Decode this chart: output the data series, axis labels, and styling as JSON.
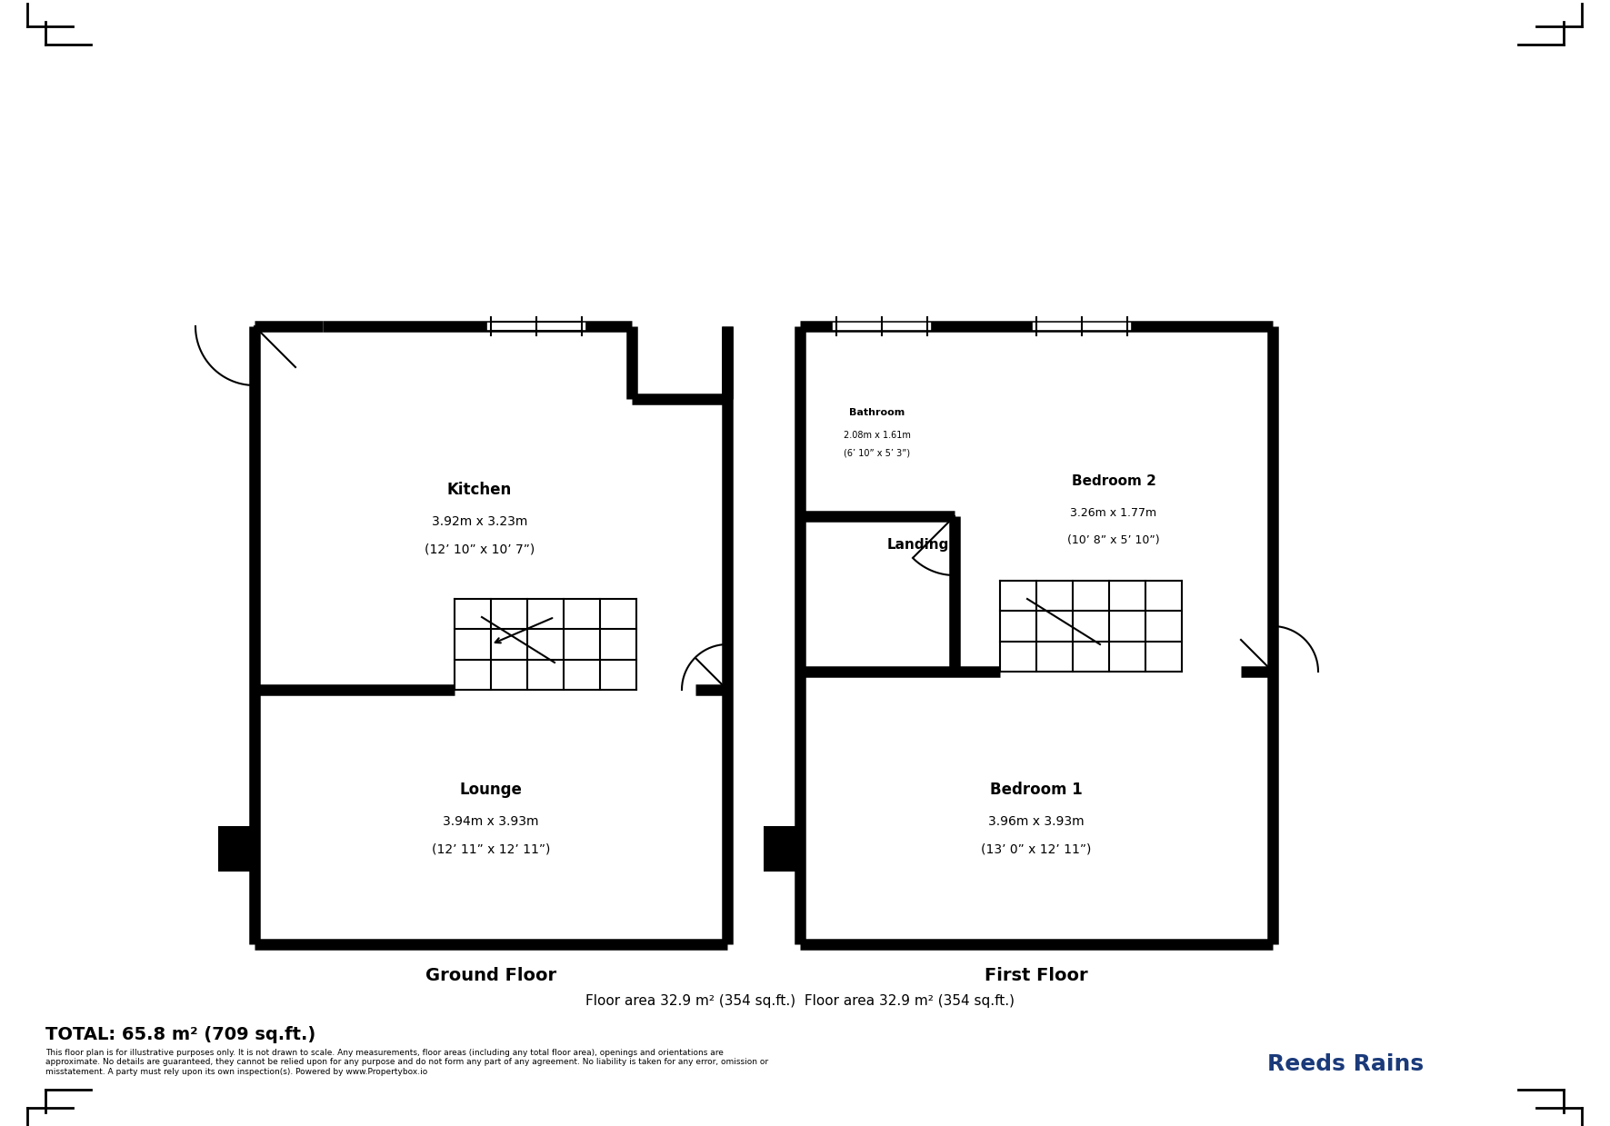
{
  "bg_color": "#ffffff",
  "wall_color": "#000000",
  "wall_lw": 8,
  "thin_lw": 1.5,
  "fig_width": 17.71,
  "fig_height": 12.39,
  "title_text": "Ground Floor",
  "title2_text": "First Floor",
  "floor_area1": "Floor area 32.9 m² (354 sq.ft.)",
  "floor_area2": "Floor area 32.9 m² (354 sq.ft.)",
  "total_text": "TOTAL: 65.8 m² (709 sq.ft.)",
  "disclaimer": "This floor plan is for illustrative purposes only. It is not drawn to scale. Any measurements, floor areas (including any total floor area), openings and orientations are\napproximate. No details are guaranteed, they cannot be relied upon for any purpose and do not form any part of any agreement. No liability is taken for any error, omission or\nmisstatement. A party must rely upon its own inspection(s). Powered by www.Propertybox.io",
  "rooms": {
    "kitchen": {
      "label": "Kitchen",
      "sub1": "3.92m x 3.23m",
      "sub2": "(12’ 10” x 10’ 7”)"
    },
    "lounge": {
      "label": "Lounge",
      "sub1": "3.94m x 3.93m",
      "sub2": "(12’ 11” x 12’ 11”)"
    },
    "bathroom": {
      "label": "Bathroom",
      "sub1": "2.08m x 1.61m",
      "sub2": "(6’ 10” x 5’ 3”)"
    },
    "bedroom2": {
      "label": "Bedroom 2",
      "sub1": "3.26m x 1.77m",
      "sub2": "(10’ 8” x 5’ 10”)"
    },
    "landing": {
      "label": "Landing"
    },
    "bedroom1": {
      "label": "Bedroom 1",
      "sub1": "3.96m x 3.93m",
      "sub2": "(13’ 0” x 12’ 11”)"
    }
  }
}
